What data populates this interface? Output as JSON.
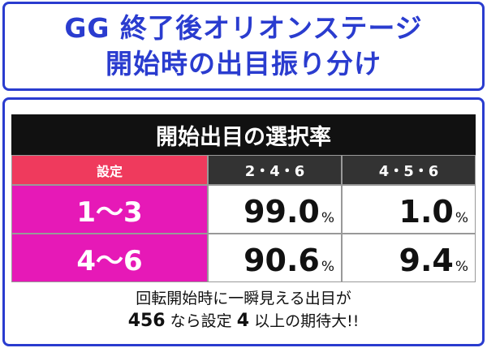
{
  "header": {
    "title_lines": [
      "GG 終了後オリオンステージ",
      "開始時の出目振り分け"
    ]
  },
  "table": {
    "title": "開始出目の選択率",
    "columns": [
      "設定",
      "2・4・6",
      "4・5・6"
    ],
    "rows": [
      {
        "label": "1～3",
        "cells": [
          {
            "value": "99.0",
            "unit": "%"
          },
          {
            "value": "1.0",
            "unit": "%"
          }
        ]
      },
      {
        "label": "4～6",
        "cells": [
          {
            "value": "90.6",
            "unit": "%"
          },
          {
            "value": "9.4",
            "unit": "%"
          }
        ]
      }
    ]
  },
  "note": {
    "lines": [
      [
        {
          "text": "回転開始時に一瞬見える出目が",
          "bold": false
        }
      ],
      [
        {
          "text": "456",
          "bold": true
        },
        {
          "text": " なら設定 ",
          "bold": false
        },
        {
          "text": "4",
          "bold": true
        },
        {
          "text": " 以上の期待大!!",
          "bold": false
        }
      ]
    ]
  }
}
